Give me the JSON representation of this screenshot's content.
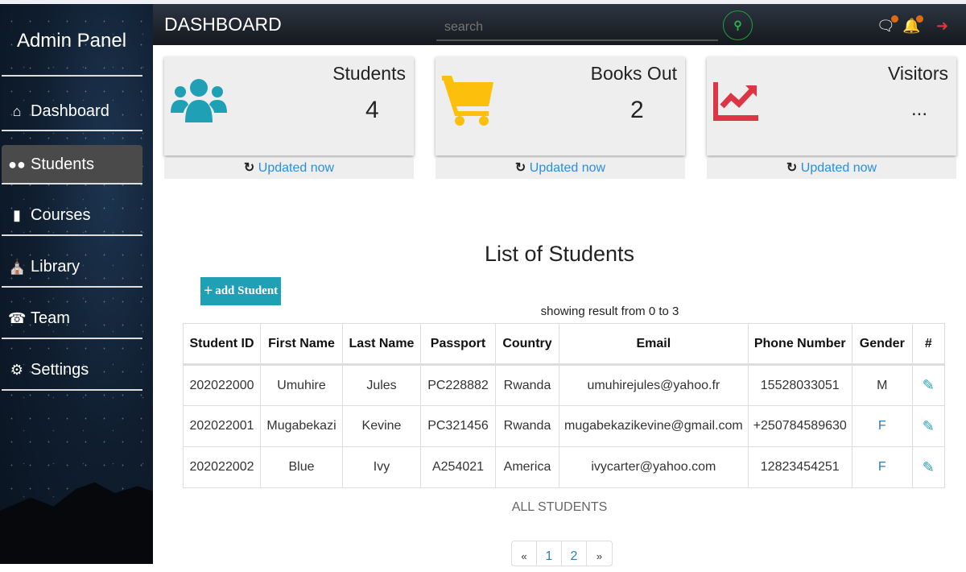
{
  "sidebar": {
    "brand": "Admin Panel",
    "items": [
      {
        "label": "Dashboard",
        "icon": "home-icon",
        "active": false
      },
      {
        "label": "Students",
        "icon": "users-icon",
        "active": true
      },
      {
        "label": "Courses",
        "icon": "book-icon",
        "active": false
      },
      {
        "label": "Library",
        "icon": "school-icon",
        "active": false
      },
      {
        "label": "Team",
        "icon": "headset-icon",
        "active": false
      },
      {
        "label": "Settings",
        "icon": "gears-icon",
        "active": false
      }
    ]
  },
  "header": {
    "title": "DASHBOARD",
    "search_placeholder": "search",
    "icons": [
      "search-icon",
      "chat-icon",
      "bell-icon",
      "logout-icon"
    ]
  },
  "cards": [
    {
      "label": "Students",
      "value": "4",
      "footer": "Updated now",
      "icon": "users-icon",
      "color": "#1fa0b4"
    },
    {
      "label": "Books Out",
      "value": "2",
      "footer": "Updated now",
      "icon": "cart-icon",
      "color": "#fbbf0c"
    },
    {
      "label": "Visitors",
      "value": "...",
      "footer": "Updated now",
      "icon": "chart-line-icon",
      "color": "#dc3545"
    }
  ],
  "main": {
    "title": "List of Students",
    "add_label": "add Student",
    "showing": "showing result from 0 to 3",
    "all_link": "ALL STUDENTS",
    "columns": [
      "Student ID",
      "First Name",
      "Last Name",
      "Passport",
      "Country",
      "Email",
      "Phone Number",
      "Gender",
      "#"
    ],
    "rows": [
      [
        "202022000",
        "Umuhire",
        "Jules",
        "PC228882",
        "Rwanda",
        "umuhirejules@yahoo.fr",
        "15528033051",
        "M"
      ],
      [
        "202022001",
        "Mugabekazi",
        "Kevine",
        "PC321456",
        "Rwanda",
        "mugabekazikevine@gmail.com",
        "+250784589630",
        "F"
      ],
      [
        "202022002",
        "Blue",
        "Ivy",
        "A254021",
        "America",
        "ivycarter@yahoo.com",
        "12823454251",
        "F"
      ]
    ],
    "pagination": {
      "prev": "«",
      "pages": [
        "1",
        "2"
      ],
      "next": "»"
    }
  }
}
